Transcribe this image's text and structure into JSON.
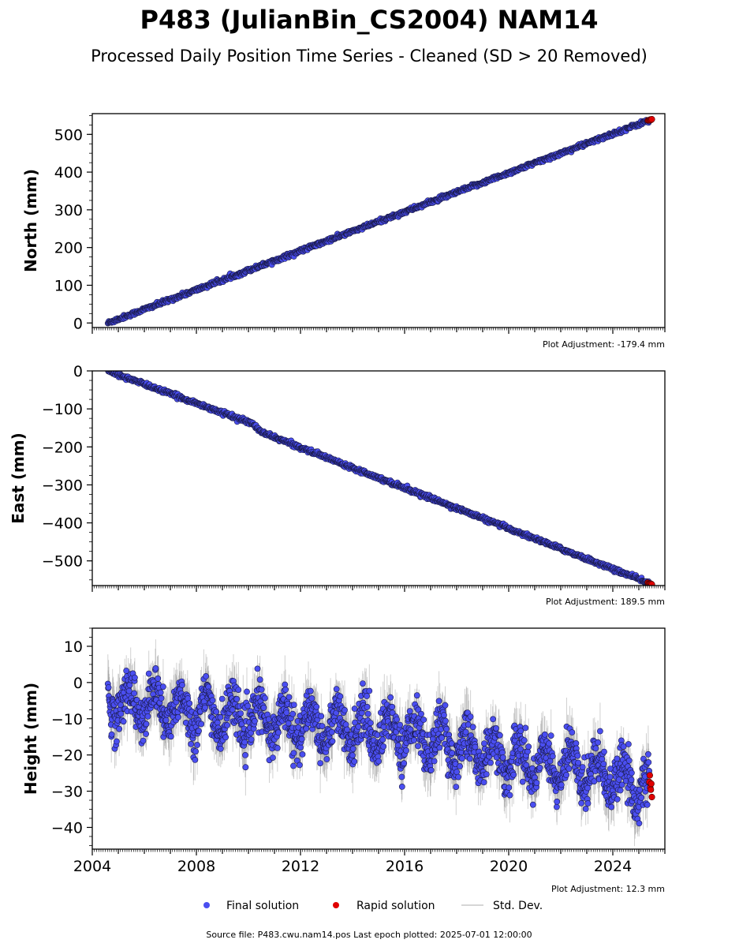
{
  "title": "P483 (JulianBin_CS2004) NAM14",
  "subtitle": "Processed Daily Position Time Series - Cleaned (SD > 20 Removed)",
  "footer": "Source file: P483.cwu.nam14.pos  Last epoch plotted: 2025-07-01 12:00:00",
  "legend": [
    {
      "label": "Final solution",
      "color": "#4a4ef0"
    },
    {
      "label": "Rapid solution",
      "color": "#e00000"
    },
    {
      "label": "Std. Dev.",
      "color": "#c8c8c8"
    }
  ],
  "colors": {
    "final": "#4a4ef0",
    "rapid": "#e00000",
    "stddev": "#7a7a7a",
    "edge": "#1a1a4a"
  },
  "chart_data": [
    {
      "type": "scatter",
      "ylabel": "North (mm)",
      "adjustment": "Plot Adjustment: -179.4 mm",
      "xlim": [
        2004.0,
        2026.0
      ],
      "ylim": [
        -12,
        555
      ],
      "yticks": [
        0,
        100,
        200,
        300,
        400,
        500
      ],
      "ytick_labels": [
        "0",
        "100",
        "200",
        "300",
        "400",
        "500"
      ],
      "x_start": 2004.6,
      "x_end": 2025.4,
      "final_trend": [
        [
          2004.6,
          0
        ],
        [
          2025.3,
          535
        ]
      ],
      "rapid_trend": [
        [
          2025.35,
          537
        ],
        [
          2025.5,
          540
        ]
      ],
      "noise_sd": 2.5,
      "stddev_band": 3
    },
    {
      "type": "scatter",
      "ylabel": "East (mm)",
      "adjustment": "Plot Adjustment: 189.5 mm",
      "xlim": [
        2004.0,
        2026.0
      ],
      "ylim": [
        -565,
        0
      ],
      "yticks": [
        0,
        -100,
        -200,
        -300,
        -400,
        -500
      ],
      "ytick_labels": [
        "0",
        "−100",
        "−200",
        "−300",
        "−400",
        "−500"
      ],
      "x_start": 2004.6,
      "x_end": 2025.4,
      "final_trend": [
        [
          2004.6,
          0
        ],
        [
          2010.2,
          -140
        ],
        [
          2010.45,
          -160
        ],
        [
          2025.3,
          -556
        ]
      ],
      "rapid_trend": [
        [
          2025.35,
          -558
        ],
        [
          2025.5,
          -562
        ]
      ],
      "noise_sd": 2.5,
      "stddev_band": 3
    },
    {
      "type": "scatter",
      "ylabel": "Height (mm)",
      "adjustment": "Plot Adjustment: 12.3 mm",
      "xlim": [
        2004.0,
        2026.0
      ],
      "ylim": [
        -46,
        15
      ],
      "yticks": [
        10,
        0,
        -10,
        -20,
        -30,
        -40
      ],
      "ytick_labels": [
        "10",
        "0",
        "−10",
        "−20",
        "−30",
        "−40"
      ],
      "xticks": [
        2004,
        2008,
        2012,
        2016,
        2020,
        2024
      ],
      "xtick_labels": [
        "2004",
        "2008",
        "2012",
        "2016",
        "2020",
        "2024"
      ],
      "x_start": 2004.6,
      "x_end": 2025.4,
      "final_trend": [
        [
          2004.6,
          -5
        ],
        [
          2010,
          -10
        ],
        [
          2016,
          -14
        ],
        [
          2020,
          -21
        ],
        [
          2024,
          -25
        ],
        [
          2025.4,
          -30
        ]
      ],
      "rapid_trend": [
        [
          2025.4,
          -26
        ],
        [
          2025.5,
          -32
        ]
      ],
      "annual_amplitude": 5,
      "noise_sd": 3.2,
      "stddev_band": 6
    }
  ]
}
